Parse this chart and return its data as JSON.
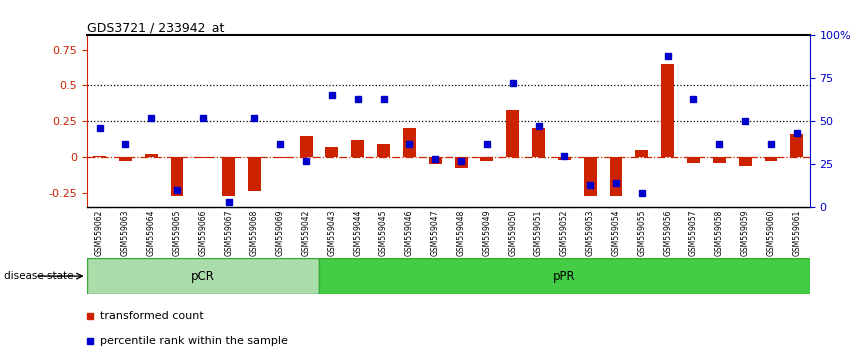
{
  "title": "GDS3721 / 233942_at",
  "samples": [
    "GSM559062",
    "GSM559063",
    "GSM559064",
    "GSM559065",
    "GSM559066",
    "GSM559067",
    "GSM559068",
    "GSM559069",
    "GSM559042",
    "GSM559043",
    "GSM559044",
    "GSM559045",
    "GSM559046",
    "GSM559047",
    "GSM559048",
    "GSM559049",
    "GSM559050",
    "GSM559051",
    "GSM559052",
    "GSM559053",
    "GSM559054",
    "GSM559055",
    "GSM559056",
    "GSM559057",
    "GSM559058",
    "GSM559059",
    "GSM559060",
    "GSM559061"
  ],
  "transformed_count": [
    0.01,
    -0.025,
    0.02,
    -0.27,
    -0.005,
    -0.27,
    -0.24,
    -0.01,
    0.15,
    0.07,
    0.12,
    0.09,
    0.2,
    -0.05,
    -0.08,
    -0.025,
    0.33,
    0.2,
    -0.02,
    -0.27,
    -0.27,
    0.05,
    0.65,
    -0.04,
    -0.04,
    -0.06,
    -0.03,
    0.16
  ],
  "percentile_rank": [
    0.46,
    0.37,
    0.52,
    0.1,
    0.52,
    0.03,
    0.52,
    0.37,
    0.27,
    0.65,
    0.63,
    0.63,
    0.37,
    0.28,
    0.27,
    0.37,
    0.72,
    0.47,
    0.3,
    0.13,
    0.14,
    0.08,
    0.88,
    0.63,
    0.37,
    0.5,
    0.37,
    0.43
  ],
  "pCR_count": 9,
  "pPR_count": 19,
  "bar_color": "#CC2200",
  "square_color": "#0000CC",
  "dotted_line_y": [
    0.25,
    0.5
  ],
  "ylim_left": [
    -0.35,
    0.85
  ],
  "left_ticks": [
    -0.25,
    0.0,
    0.25,
    0.5,
    0.75
  ],
  "left_tick_labels": [
    "-0.25",
    "0",
    "0.25",
    "0.5",
    "0.75"
  ],
  "right_tick_labels": [
    "0",
    "25",
    "50",
    "75",
    "100%"
  ],
  "pCR_color": "#AADDAA",
  "pPR_color": "#44CC44",
  "pCR_border": "#33AA33",
  "pPR_border": "#33AA33",
  "xtick_bg": "#CCCCCC",
  "disease_bg": "#CCCCCC",
  "plot_bg": "white"
}
